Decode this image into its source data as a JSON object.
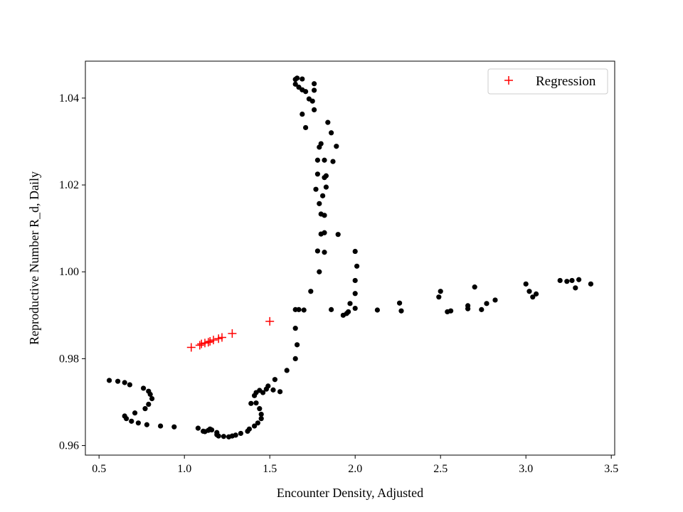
{
  "chart_data": {
    "type": "scatter",
    "xlabel": "Encounter Density, Adjusted",
    "ylabel": "Reproductive Number R_d, Daily",
    "xlim": [
      0.42,
      3.52
    ],
    "ylim": [
      0.9578,
      1.0485
    ],
    "xticks": [
      0.5,
      1.0,
      1.5,
      2.0,
      2.5,
      3.0,
      3.5
    ],
    "xtick_labels": [
      "0.5",
      "1.0",
      "1.5",
      "2.0",
      "2.5",
      "3.0",
      "3.5"
    ],
    "yticks": [
      0.96,
      0.98,
      1.0,
      1.02,
      1.04
    ],
    "ytick_labels": [
      "0.96",
      "0.98",
      "1.00",
      "1.02",
      "1.04"
    ],
    "grid": false,
    "legend_position": "top-right",
    "series": [
      {
        "marker": "dot",
        "color": "#000000",
        "x": [
          0.56,
          0.61,
          0.65,
          0.68,
          0.76,
          0.79,
          0.8,
          0.81,
          0.79,
          0.77,
          0.71,
          0.65,
          0.66,
          0.69,
          0.73,
          0.78,
          0.86,
          0.94,
          1.08,
          1.11,
          1.12,
          1.14,
          1.15,
          1.16,
          1.19,
          1.19,
          1.2,
          1.23,
          1.26,
          1.28,
          1.3,
          1.33,
          1.37,
          1.38,
          1.41,
          1.43,
          1.45,
          1.45,
          1.44,
          1.42,
          1.39,
          1.41,
          1.42,
          1.44,
          1.46,
          1.48,
          1.49,
          1.53,
          1.52,
          1.56,
          1.6,
          1.65,
          1.66,
          1.65,
          1.65,
          1.67,
          1.7,
          1.74,
          1.79,
          1.82,
          1.82,
          1.8,
          1.79,
          1.81,
          1.82,
          1.82,
          1.8,
          1.79,
          1.78,
          1.78,
          1.77,
          1.76,
          1.76,
          1.75,
          1.71,
          1.69,
          1.69,
          1.66,
          1.65,
          1.65,
          1.67,
          1.69,
          1.71,
          1.73,
          1.76,
          1.84,
          1.86,
          1.89,
          1.87,
          1.83,
          1.83,
          1.82,
          1.8,
          1.78,
          1.86,
          1.9,
          1.93,
          1.95,
          1.96,
          1.97,
          2.0,
          2.01,
          2.0,
          2.0,
          2.0,
          2.13,
          2.26,
          2.27,
          2.49,
          2.5,
          2.54,
          2.56,
          2.66,
          2.66,
          2.7,
          2.74,
          2.77,
          2.82,
          3.0,
          3.02,
          3.04,
          3.06,
          3.2,
          3.24,
          3.27,
          3.29,
          3.31,
          3.38
        ],
        "y": [
          0.975,
          0.9748,
          0.9745,
          0.974,
          0.9732,
          0.9725,
          0.9718,
          0.9708,
          0.9695,
          0.9685,
          0.9675,
          0.9668,
          0.9662,
          0.9656,
          0.9652,
          0.9648,
          0.9645,
          0.9643,
          0.964,
          0.9633,
          0.9632,
          0.9635,
          0.9638,
          0.9636,
          0.963,
          0.9625,
          0.9622,
          0.9621,
          0.962,
          0.9622,
          0.9624,
          0.9628,
          0.9633,
          0.9638,
          0.9645,
          0.9652,
          0.9662,
          0.9672,
          0.9685,
          0.9698,
          0.9697,
          0.9715,
          0.9722,
          0.9727,
          0.9722,
          0.973,
          0.9737,
          0.9752,
          0.9728,
          0.9724,
          0.9773,
          0.98,
          0.9832,
          0.987,
          0.9913,
          0.9913,
          0.9912,
          0.9955,
          1.0,
          1.0045,
          1.009,
          1.0133,
          1.0157,
          1.0175,
          1.0217,
          1.0257,
          1.0295,
          1.0287,
          1.0257,
          1.0225,
          1.019,
          1.0433,
          1.0418,
          1.0393,
          1.0332,
          1.0363,
          1.0444,
          1.0446,
          1.0443,
          1.0432,
          1.0425,
          1.0419,
          1.0415,
          1.0398,
          1.0373,
          1.0344,
          1.032,
          1.0289,
          1.0254,
          1.0221,
          1.0195,
          1.013,
          1.0087,
          1.0048,
          0.9913,
          1.0086,
          0.99,
          0.9904,
          0.9908,
          0.9927,
          1.0047,
          1.0013,
          0.998,
          0.995,
          0.9916,
          0.9912,
          0.9928,
          0.991,
          0.9942,
          0.9955,
          0.9908,
          0.991,
          0.9915,
          0.9922,
          0.9965,
          0.9913,
          0.9927,
          0.9935,
          0.9972,
          0.9955,
          0.9942,
          0.9949,
          0.998,
          0.9978,
          0.998,
          0.9963,
          0.9982,
          0.9972
        ]
      },
      {
        "name": "Regression",
        "marker": "plus",
        "color": "#ff0000",
        "x": [
          1.04,
          1.09,
          1.1,
          1.12,
          1.14,
          1.15,
          1.17,
          1.2,
          1.22,
          1.28,
          1.5
        ],
        "y": [
          0.9826,
          0.9831,
          0.9834,
          0.9836,
          0.9838,
          0.984,
          0.9843,
          0.9846,
          0.9849,
          0.9858,
          0.9886
        ]
      }
    ]
  }
}
